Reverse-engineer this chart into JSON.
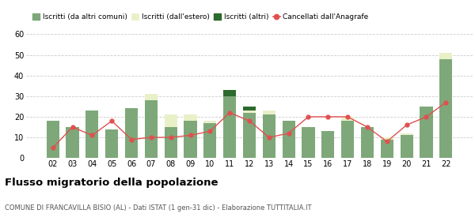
{
  "years": [
    "02",
    "03",
    "04",
    "05",
    "06",
    "07",
    "08",
    "09",
    "10",
    "11",
    "12",
    "13",
    "14",
    "15",
    "16",
    "17",
    "18",
    "19",
    "20",
    "21",
    "22"
  ],
  "iscritti_comuni": [
    18,
    15,
    23,
    14,
    24,
    28,
    15,
    18,
    17,
    30,
    22,
    21,
    18,
    15,
    13,
    18,
    15,
    9,
    11,
    25,
    48
  ],
  "iscritti_estero": [
    0,
    0,
    0,
    0,
    0,
    3,
    6,
    3,
    1,
    0,
    1,
    2,
    0,
    0,
    0,
    2,
    0,
    1,
    1,
    0,
    3
  ],
  "iscritti_altri": [
    0,
    0,
    0,
    0,
    0,
    0,
    0,
    0,
    0,
    3,
    2,
    0,
    0,
    0,
    0,
    0,
    0,
    0,
    0,
    0,
    0
  ],
  "cancellati": [
    5,
    15,
    11,
    18,
    9,
    10,
    10,
    11,
    13,
    22,
    18,
    10,
    12,
    20,
    20,
    20,
    15,
    8,
    16,
    20,
    27
  ],
  "color_comuni": "#7ea87a",
  "color_estero": "#e8f0c8",
  "color_altri": "#2d6a2d",
  "color_cancellati": "#e05050",
  "ylim": [
    0,
    60
  ],
  "yticks": [
    0,
    10,
    20,
    30,
    40,
    50,
    60
  ],
  "title": "Flusso migratorio della popolazione",
  "subtitle": "COMUNE DI FRANCAVILLA BISIO (AL) - Dati ISTAT (1 gen-31 dic) - Elaborazione TUTTITALIA.IT",
  "legend_labels": [
    "Iscritti (da altri comuni)",
    "Iscritti (dall'estero)",
    "Iscritti (altri)",
    "Cancellati dall'Anagrafe"
  ]
}
